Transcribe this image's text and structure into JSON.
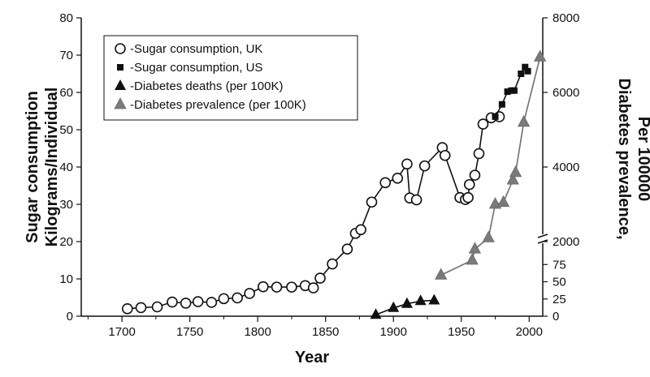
{
  "chart_data": {
    "type": "scatter",
    "x_label": "Year",
    "y_label_left": [
      "Sugar consumption",
      "Kilograms/Individual"
    ],
    "y_label_right": [
      "Diabetes prevalence,",
      "Per 100000"
    ],
    "x_range": [
      1670,
      2010
    ],
    "x_ticks": [
      1700,
      1750,
      1800,
      1850,
      1900,
      1950,
      2000
    ],
    "y_left_range": [
      0,
      80
    ],
    "y_left_ticks": [
      0,
      10,
      20,
      30,
      40,
      50,
      60,
      70,
      80
    ],
    "y_right_lower_range": [
      0,
      100
    ],
    "y_right_lower_ticks": [
      0,
      25,
      50,
      75
    ],
    "y_right_upper_range": [
      0,
      8000
    ],
    "y_right_upper_ticks": [
      2000,
      4000,
      6000,
      8000
    ],
    "axis_break": "right axis broken between 100 and ~1100 per 100K",
    "grid": false,
    "legend_position": "top-left",
    "series": [
      {
        "name": "-Sugar consumption, UK",
        "marker": "open-circle",
        "axis": "left",
        "connected": true,
        "points": [
          [
            1704,
            2.0
          ],
          [
            1714,
            2.3
          ],
          [
            1726,
            2.5
          ],
          [
            1737,
            3.8
          ],
          [
            1747,
            3.5
          ],
          [
            1756,
            3.9
          ],
          [
            1766,
            3.7
          ],
          [
            1775,
            4.7
          ],
          [
            1785,
            4.9
          ],
          [
            1794,
            6.1
          ],
          [
            1804,
            7.9
          ],
          [
            1814,
            7.8
          ],
          [
            1825,
            7.8
          ],
          [
            1835,
            8.2
          ],
          [
            1841,
            7.6
          ],
          [
            1846,
            10.2
          ],
          [
            1855,
            14.0
          ],
          [
            1866,
            18.0
          ],
          [
            1872,
            22.2
          ],
          [
            1876,
            23.2
          ],
          [
            1884,
            30.6
          ],
          [
            1894,
            35.8
          ],
          [
            1903,
            37.0
          ],
          [
            1910,
            40.8
          ],
          [
            1912,
            31.7
          ],
          [
            1917,
            31.2
          ],
          [
            1923,
            40.3
          ],
          [
            1936,
            45.2
          ],
          [
            1938,
            43.1
          ],
          [
            1949,
            31.8
          ],
          [
            1953,
            31.3
          ],
          [
            1955,
            31.8
          ],
          [
            1956,
            35.3
          ],
          [
            1960,
            37.8
          ],
          [
            1963,
            43.6
          ],
          [
            1966,
            51.5
          ],
          [
            1972,
            53.2
          ],
          [
            1978,
            53.5
          ]
        ]
      },
      {
        "name": "-Sugar consumption, US",
        "marker": "filled-square",
        "axis": "left",
        "connected": true,
        "points": [
          [
            1975,
            53.5
          ],
          [
            1980,
            56.8
          ],
          [
            1984,
            60.2
          ],
          [
            1987,
            60.5
          ],
          [
            1989,
            60.5
          ],
          [
            1994,
            65.0
          ],
          [
            1997,
            66.8
          ],
          [
            1999,
            65.7
          ]
        ]
      },
      {
        "name": "-Diabetes deaths (per 100K)",
        "marker": "filled-triangle",
        "axis": "right-lower",
        "connected": true,
        "points": [
          [
            1887,
            2
          ],
          [
            1900,
            12
          ],
          [
            1910,
            18
          ],
          [
            1920,
            22
          ],
          [
            1930,
            23
          ]
        ]
      },
      {
        "name": "-Diabetes prevalence (per 100K)",
        "marker": "gray-triangle",
        "axis": "right-upper",
        "connected": true,
        "points": [
          [
            1935,
            1100
          ],
          [
            1958,
            1500
          ],
          [
            1960,
            1800
          ],
          [
            1970,
            2100
          ],
          [
            1975,
            3000
          ],
          [
            1981,
            3050
          ],
          [
            1988,
            3650
          ],
          [
            1990,
            3850
          ],
          [
            1996,
            5200
          ],
          [
            2008,
            6950
          ]
        ]
      }
    ]
  }
}
